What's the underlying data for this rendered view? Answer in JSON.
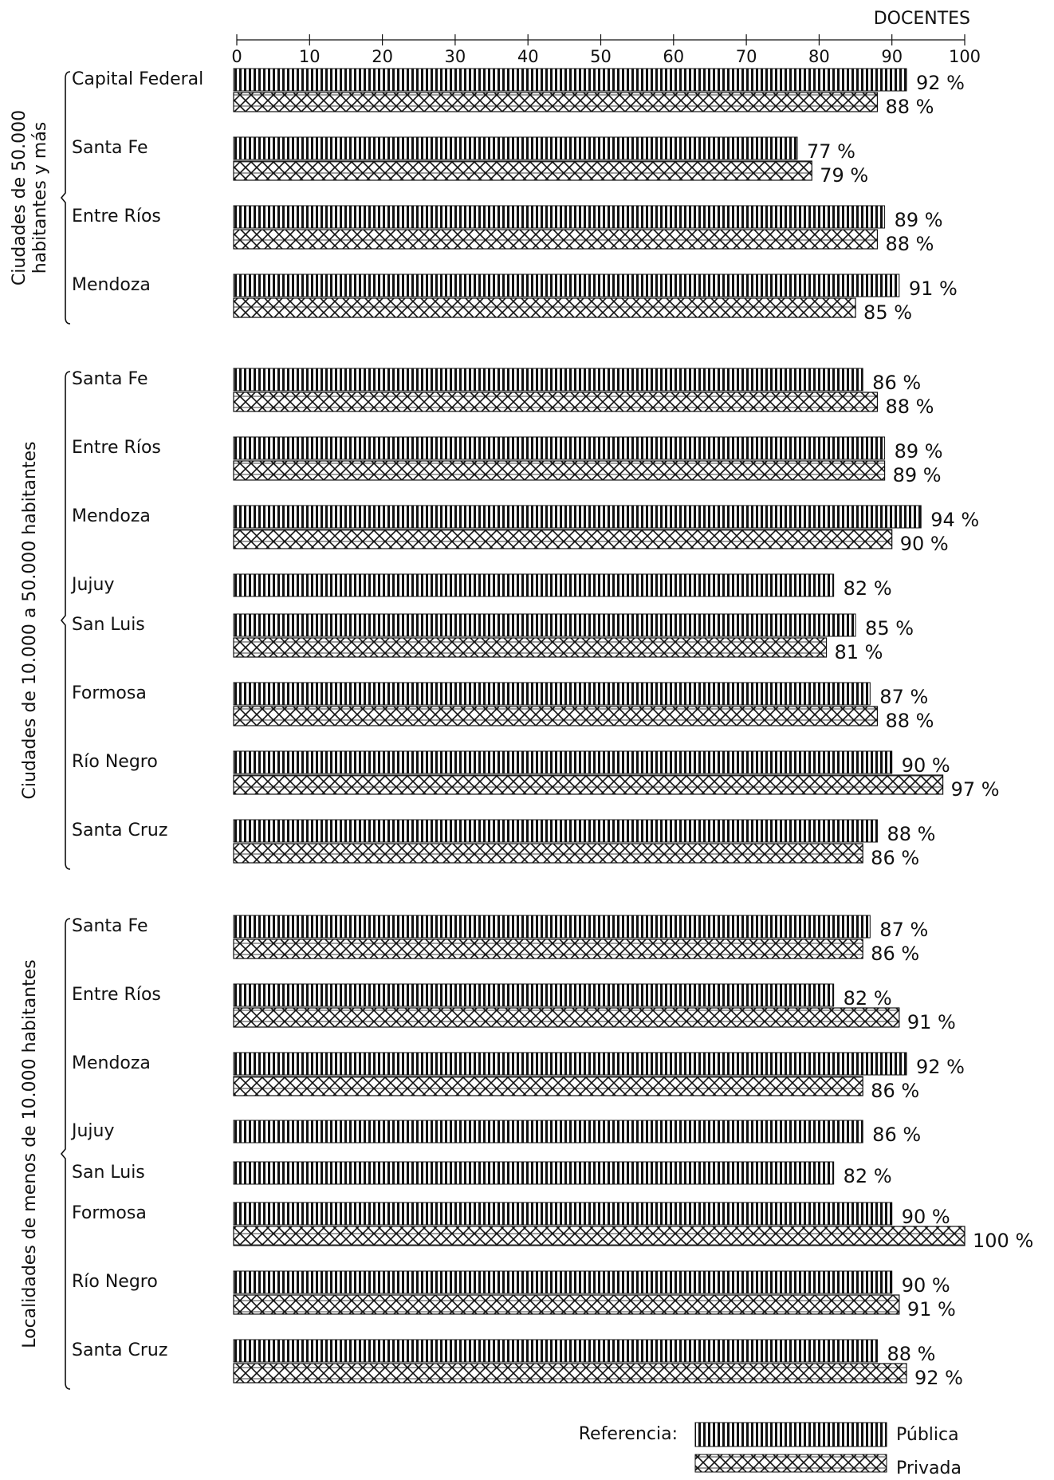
{
  "chart_data": {
    "type": "bar",
    "orientation": "horizontal",
    "axis_title": "DOCENTES",
    "xlim": [
      0,
      100
    ],
    "ticks": [
      "0",
      "10",
      "20",
      "30",
      "40",
      "50",
      "60",
      "70",
      "80",
      "90",
      "100"
    ],
    "legend": {
      "title": "Referencia:",
      "entries": [
        {
          "name": "Pública",
          "pattern": "vertical-lines"
        },
        {
          "name": "Privada",
          "pattern": "crosshatch"
        }
      ],
      "placement": "bottom-right"
    },
    "series_names": [
      "Pública",
      "Privada"
    ],
    "groups": [
      {
        "label_lines": [
          "Ciudades de 50.000",
          "habitantes y más"
        ],
        "rows": [
          {
            "label": "Capital  Federal",
            "publica": 92,
            "publica_label": "92 %",
            "privada": 88,
            "privada_label": "88 %"
          },
          {
            "label": "Santa  Fe",
            "publica": 77,
            "publica_label": "77 %",
            "privada": 79,
            "privada_label": "79 %"
          },
          {
            "label": "Entre Ríos",
            "publica": 89,
            "publica_label": "89 %",
            "privada": 88,
            "privada_label": "88 %"
          },
          {
            "label": "Mendoza",
            "publica": 91,
            "publica_label": "91 %",
            "privada": 85,
            "privada_label": "85 %"
          }
        ]
      },
      {
        "label_lines": [
          "Ciudades de 10.000 a 50.000 habitantes"
        ],
        "rows": [
          {
            "label": "Santa  Fe",
            "publica": 86,
            "publica_label": "86 %",
            "privada": 88,
            "privada_label": "88 %"
          },
          {
            "label": "Entre  Ríos",
            "publica": 89,
            "publica_label": "89 %",
            "privada": 89,
            "privada_label": "89 %"
          },
          {
            "label": "Mendoza",
            "publica": 94,
            "publica_label": "94 %",
            "privada": 90,
            "privada_label": "90 %"
          },
          {
            "label": "Jujuy",
            "publica": 82,
            "publica_label": "82 %",
            "privada": null,
            "privada_label": ""
          },
          {
            "label": "San  Luis",
            "publica": 85,
            "publica_label": "85 %",
            "privada": 81,
            "privada_label": "81 %"
          },
          {
            "label": "Formosa",
            "publica": 87,
            "publica_label": "87 %",
            "privada": 88,
            "privada_label": "88 %"
          },
          {
            "label": "Río  Negro",
            "publica": 90,
            "publica_label": "90 %",
            "privada": 97,
            "privada_label": "97 %"
          },
          {
            "label": "Santa  Cruz",
            "publica": 88,
            "publica_label": "88 %",
            "privada": 86,
            "privada_label": "86 %"
          }
        ]
      },
      {
        "label_lines": [
          "Localidades de menos de 10.000 habitantes"
        ],
        "rows": [
          {
            "label": "Santa  Fe",
            "publica": 87,
            "publica_label": "87 %",
            "privada": 86,
            "privada_label": "86 %"
          },
          {
            "label": "Entre  Ríos",
            "publica": 82,
            "publica_label": "82 %",
            "privada": 91,
            "privada_label": "91 %"
          },
          {
            "label": "Mendoza",
            "publica": 92,
            "publica_label": "92 %",
            "privada": 86,
            "privada_label": "86 %"
          },
          {
            "label": "Jujuy",
            "publica": 86,
            "publica_label": "86 %",
            "privada": null,
            "privada_label": ""
          },
          {
            "label": "San  Luis",
            "publica": 82,
            "publica_label": "82 %",
            "privada": null,
            "privada_label": ""
          },
          {
            "label": "Formosa",
            "publica": 90,
            "publica_label": "90 %",
            "privada": 100,
            "privada_label": "100 %"
          },
          {
            "label": "Río  Negro",
            "publica": 90,
            "publica_label": "90 %",
            "privada": 91,
            "privada_label": "91 %"
          },
          {
            "label": "Santa  Cruz",
            "publica": 88,
            "publica_label": "88 %",
            "privada": 92,
            "privada_label": "92 %"
          }
        ]
      }
    ]
  }
}
